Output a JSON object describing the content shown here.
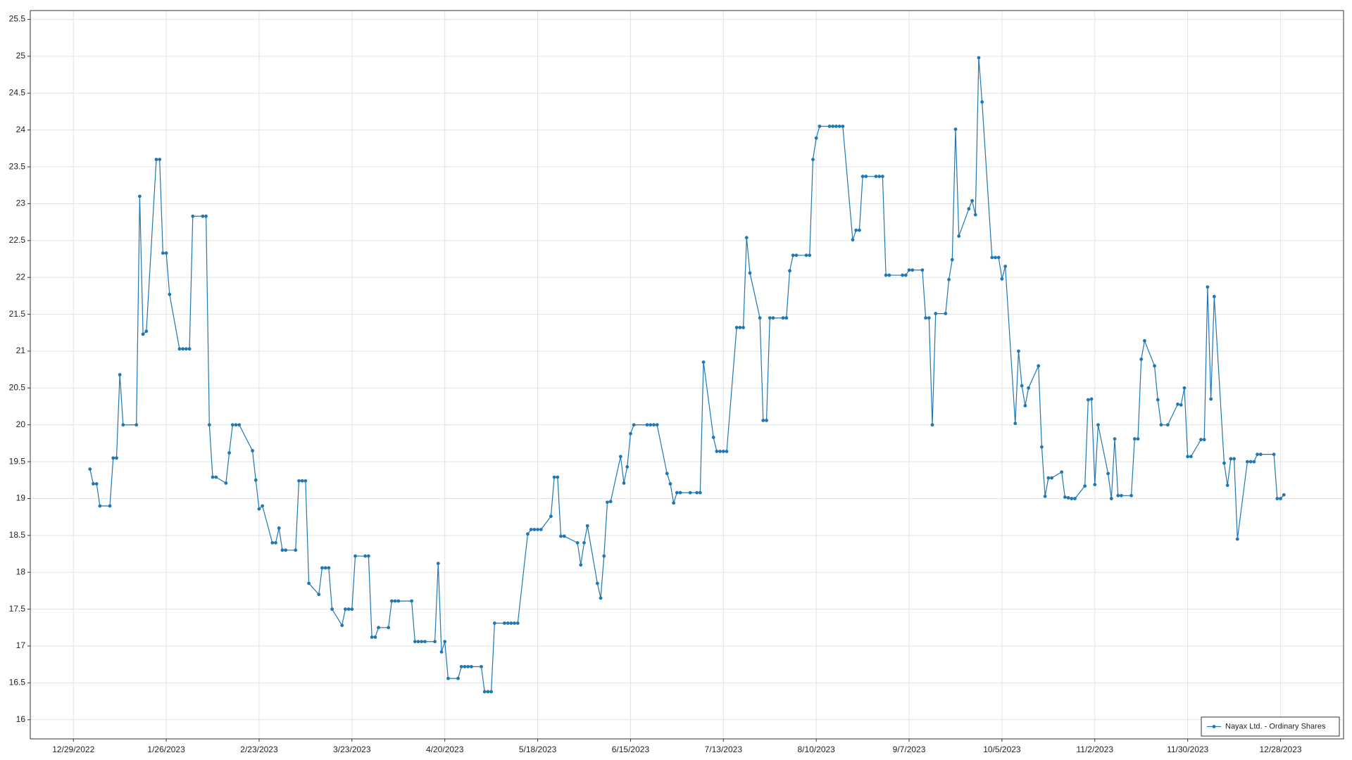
{
  "chart_data": {
    "type": "line",
    "x": [
      "1/3/2023",
      "1/4/2023",
      "1/5/2023",
      "1/6/2023",
      "1/9/2023",
      "1/10/2023",
      "1/11/2023",
      "1/12/2023",
      "1/13/2023",
      "1/17/2023",
      "1/18/2023",
      "1/19/2023",
      "1/20/2023",
      "1/23/2023",
      "1/24/2023",
      "1/25/2023",
      "1/26/2023",
      "1/27/2023",
      "1/30/2023",
      "1/31/2023",
      "2/1/2023",
      "2/2/2023",
      "2/3/2023",
      "2/6/2023",
      "2/7/2023",
      "2/8/2023",
      "2/9/2023",
      "2/10/2023",
      "2/13/2023",
      "2/14/2023",
      "2/15/2023",
      "2/16/2023",
      "2/17/2023",
      "2/21/2023",
      "2/22/2023",
      "2/23/2023",
      "2/24/2023",
      "2/27/2023",
      "2/28/2023",
      "3/1/2023",
      "3/2/2023",
      "3/3/2023",
      "3/6/2023",
      "3/7/2023",
      "3/8/2023",
      "3/9/2023",
      "3/10/2023",
      "3/13/2023",
      "3/14/2023",
      "3/15/2023",
      "3/16/2023",
      "3/17/2023",
      "3/20/2023",
      "3/21/2023",
      "3/22/2023",
      "3/23/2023",
      "3/24/2023",
      "3/27/2023",
      "3/28/2023",
      "3/29/2023",
      "3/30/2023",
      "3/31/2023",
      "4/3/2023",
      "4/4/2023",
      "4/5/2023",
      "4/6/2023",
      "4/10/2023",
      "4/11/2023",
      "4/12/2023",
      "4/13/2023",
      "4/14/2023",
      "4/17/2023",
      "4/18/2023",
      "4/19/2023",
      "4/20/2023",
      "4/21/2023",
      "4/24/2023",
      "4/25/2023",
      "4/26/2023",
      "4/27/2023",
      "4/28/2023",
      "5/1/2023",
      "5/2/2023",
      "5/3/2023",
      "5/4/2023",
      "5/5/2023",
      "5/8/2023",
      "5/9/2023",
      "5/10/2023",
      "5/11/2023",
      "5/12/2023",
      "5/15/2023",
      "5/16/2023",
      "5/17/2023",
      "5/18/2023",
      "5/19/2023",
      "5/22/2023",
      "5/23/2023",
      "5/24/2023",
      "5/25/2023",
      "5/26/2023",
      "5/30/2023",
      "5/31/2023",
      "6/1/2023",
      "6/2/2023",
      "6/5/2023",
      "6/6/2023",
      "6/7/2023",
      "6/8/2023",
      "6/9/2023",
      "6/12/2023",
      "6/13/2023",
      "6/14/2023",
      "6/15/2023",
      "6/16/2023",
      "6/20/2023",
      "6/21/2023",
      "6/22/2023",
      "6/23/2023",
      "6/26/2023",
      "6/27/2023",
      "6/28/2023",
      "6/29/2023",
      "6/30/2023",
      "7/3/2023",
      "7/5/2023",
      "7/6/2023",
      "7/7/2023",
      "7/10/2023",
      "7/11/2023",
      "7/12/2023",
      "7/13/2023",
      "7/14/2023",
      "7/17/2023",
      "7/18/2023",
      "7/19/2023",
      "7/20/2023",
      "7/21/2023",
      "7/24/2023",
      "7/25/2023",
      "7/26/2023",
      "7/27/2023",
      "7/28/2023",
      "7/31/2023",
      "8/1/2023",
      "8/2/2023",
      "8/3/2023",
      "8/4/2023",
      "8/7/2023",
      "8/8/2023",
      "8/9/2023",
      "8/10/2023",
      "8/11/2023",
      "8/14/2023",
      "8/15/2023",
      "8/16/2023",
      "8/17/2023",
      "8/18/2023",
      "8/21/2023",
      "8/22/2023",
      "8/23/2023",
      "8/24/2023",
      "8/25/2023",
      "8/28/2023",
      "8/29/2023",
      "8/30/2023",
      "8/31/2023",
      "9/1/2023",
      "9/5/2023",
      "9/6/2023",
      "9/7/2023",
      "9/8/2023",
      "9/11/2023",
      "9/12/2023",
      "9/13/2023",
      "9/14/2023",
      "9/15/2023",
      "9/18/2023",
      "9/19/2023",
      "9/20/2023",
      "9/21/2023",
      "9/22/2023",
      "9/25/2023",
      "9/26/2023",
      "9/27/2023",
      "9/28/2023",
      "9/29/2023",
      "10/2/2023",
      "10/3/2023",
      "10/4/2023",
      "10/5/2023",
      "10/6/2023",
      "10/9/2023",
      "10/10/2023",
      "10/11/2023",
      "10/12/2023",
      "10/13/2023",
      "10/16/2023",
      "10/17/2023",
      "10/18/2023",
      "10/19/2023",
      "10/20/2023",
      "10/23/2023",
      "10/24/2023",
      "10/25/2023",
      "10/26/2023",
      "10/27/2023",
      "10/30/2023",
      "10/31/2023",
      "11/1/2023",
      "11/2/2023",
      "11/3/2023",
      "11/6/2023",
      "11/7/2023",
      "11/8/2023",
      "11/9/2023",
      "11/10/2023",
      "11/13/2023",
      "11/14/2023",
      "11/15/2023",
      "11/16/2023",
      "11/17/2023",
      "11/20/2023",
      "11/21/2023",
      "11/22/2023",
      "11/24/2023",
      "11/27/2023",
      "11/28/2023",
      "11/29/2023",
      "11/30/2023",
      "12/1/2023",
      "12/4/2023",
      "12/5/2023",
      "12/6/2023",
      "12/7/2023",
      "12/8/2023",
      "12/11/2023",
      "12/12/2023",
      "12/13/2023",
      "12/14/2023",
      "12/15/2023",
      "12/18/2023",
      "12/19/2023",
      "12/20/2023",
      "12/21/2023",
      "12/22/2023",
      "12/26/2023",
      "12/27/2023",
      "12/28/2023",
      "12/29/2023"
    ],
    "series": [
      {
        "name": "Nayax Ltd. - Ordinary Shares",
        "color": "#1f77b4",
        "values": [
          19.4,
          19.2,
          19.2,
          18.9,
          18.9,
          19.55,
          19.55,
          20.68,
          20.0,
          20.0,
          23.1,
          21.23,
          21.27,
          23.6,
          23.6,
          22.33,
          22.33,
          21.77,
          21.03,
          21.03,
          21.03,
          21.03,
          22.83,
          22.83,
          22.83,
          20.0,
          19.29,
          19.29,
          19.21,
          19.62,
          20.0,
          20.0,
          20.0,
          19.65,
          19.25,
          18.86,
          18.9,
          18.4,
          18.4,
          18.6,
          18.3,
          18.3,
          18.3,
          19.24,
          19.24,
          19.24,
          17.85,
          17.7,
          18.06,
          18.06,
          18.06,
          17.5,
          17.28,
          17.5,
          17.5,
          17.5,
          18.22,
          18.22,
          18.22,
          17.12,
          17.12,
          17.25,
          17.25,
          17.61,
          17.61,
          17.61,
          17.61,
          17.06,
          17.06,
          17.06,
          17.06,
          17.06,
          18.12,
          16.92,
          17.06,
          16.56,
          16.56,
          16.72,
          16.72,
          16.72,
          16.72,
          16.72,
          16.38,
          16.38,
          16.38,
          17.31,
          17.31,
          17.31,
          17.31,
          17.31,
          17.31,
          18.52,
          18.58,
          18.58,
          18.58,
          18.58,
          18.76,
          19.29,
          19.29,
          18.49,
          18.49,
          18.4,
          18.1,
          18.4,
          18.63,
          17.85,
          17.65,
          18.22,
          18.95,
          18.96,
          19.57,
          19.21,
          19.43,
          19.88,
          20.0,
          20.0,
          20.0,
          20.0,
          20.0,
          19.34,
          19.2,
          18.94,
          19.08,
          19.08,
          19.08,
          19.08,
          19.08,
          20.85,
          19.83,
          19.64,
          19.64,
          19.64,
          19.64,
          21.32,
          21.32,
          21.32,
          22.54,
          22.06,
          21.45,
          20.06,
          20.06,
          21.45,
          21.45,
          21.45,
          21.45,
          22.09,
          22.3,
          22.3,
          22.3,
          22.3,
          23.6,
          23.89,
          24.05,
          24.05,
          24.05,
          24.05,
          24.05,
          24.05,
          22.51,
          22.64,
          22.64,
          23.37,
          23.37,
          23.37,
          23.37,
          23.37,
          22.03,
          22.03,
          22.03,
          22.03,
          22.1,
          22.1,
          22.1,
          21.45,
          21.45,
          20.0,
          21.51,
          21.51,
          21.97,
          22.24,
          24.01,
          22.56,
          22.93,
          23.04,
          22.85,
          24.98,
          24.38,
          22.27,
          22.27,
          22.27,
          21.98,
          22.15,
          20.02,
          21.0,
          20.53,
          20.26,
          20.5,
          20.8,
          19.7,
          19.03,
          19.28,
          19.28,
          19.36,
          19.02,
          19.01,
          19.0,
          19.0,
          19.17,
          20.34,
          20.35,
          19.19,
          20.0,
          19.34,
          19.0,
          19.81,
          19.04,
          19.04,
          19.04,
          19.81,
          19.81,
          20.89,
          21.14,
          20.8,
          20.34,
          20.0,
          20.0,
          20.28,
          20.27,
          20.5,
          19.57,
          19.57,
          19.8,
          19.8,
          21.87,
          20.35,
          21.74,
          19.48,
          19.18,
          19.54,
          19.54,
          18.45,
          19.5,
          19.5,
          19.5,
          19.6,
          19.6,
          19.6,
          19.0,
          19.0,
          19.05
        ]
      }
    ],
    "xlim": [
      "12/16/2022",
      "1/16/2024"
    ],
    "xticks": [
      "12/29/2022",
      "1/26/2023",
      "2/23/2023",
      "3/23/2023",
      "4/20/2023",
      "5/18/2023",
      "6/15/2023",
      "7/13/2023",
      "8/10/2023",
      "9/7/2023",
      "10/5/2023",
      "11/2/2023",
      "11/30/2023",
      "12/28/2023"
    ],
    "ylim": [
      15.74,
      25.62
    ],
    "yticks": [
      16,
      16.5,
      17,
      17.5,
      18,
      18.5,
      19,
      19.5,
      20,
      20.5,
      21,
      21.5,
      22,
      22.5,
      23,
      23.5,
      24,
      24.5,
      25,
      25.5
    ],
    "grid": true,
    "legend": "bottom-right"
  }
}
